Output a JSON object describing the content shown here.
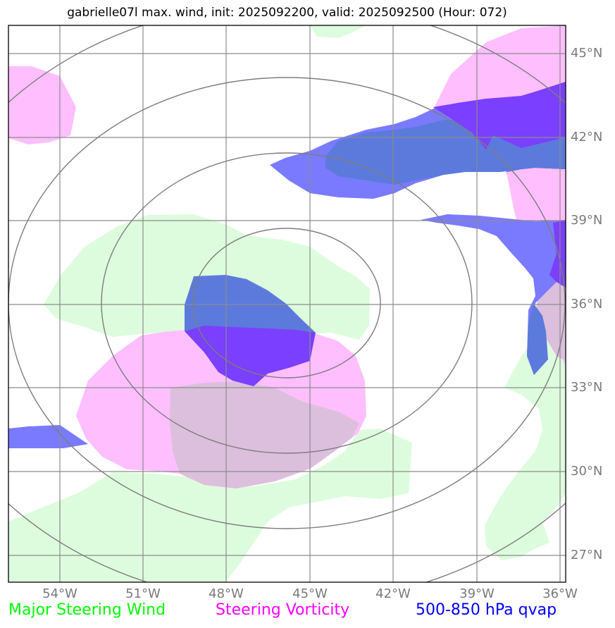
{
  "title": "gabrielle07l max. wind, init: 2025092200, valid: 2025092500 (Hour: 072)",
  "lat_labels": [
    "45°N",
    "42°N",
    "39°N",
    "36°N",
    "33°N",
    "30°N",
    "27°N"
  ],
  "lon_labels": [
    "54°W",
    "51°W",
    "48°W",
    "45°W",
    "42°W",
    "39°W",
    "36°W"
  ],
  "legend": {
    "wind": "Major Steering Wind",
    "vorticity": "Steering Vorticity",
    "qvap": "500-850 hPa qvap"
  },
  "colors": {
    "wind_fill": "#ddfcdd",
    "vorticity_fill": "#ffbfff",
    "overlap_fill": "#dcbfdc",
    "qvap_light": "#7a7aff",
    "qvap_dark": "#7a3fff",
    "qvap_mid": "#5c7adc",
    "wind_text": "#00ff00",
    "vorticity_text": "#ff00ff",
    "qvap_text": "#0000ff",
    "grid": "#8c8c8c",
    "contour": "#7d7d7d"
  }
}
